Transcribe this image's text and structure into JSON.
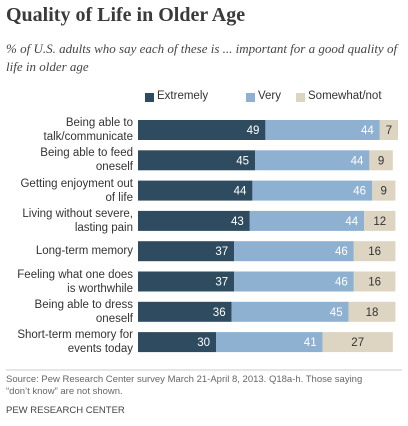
{
  "chart_data": {
    "type": "stacked-bar-horizontal",
    "title": "Quality of Life in Older Age",
    "subtitle": "% of U.S. adults who say each of these is ... important for a good quality of\nlife in older age",
    "categories": [
      "Being able to\ntalk/communicate",
      "Being able to feed\noneself",
      "Getting enjoyment out\nof life",
      "Living without severe,\nlasting pain",
      "Long-term memory",
      "Feeling what one does\nis worthwhile",
      "Being able to dress\noneself",
      "Short-term memory for\nevents today"
    ],
    "series": [
      {
        "name": "Extremely",
        "color": "#2f4b5f",
        "label_color": "#ffffff",
        "values": [
          49,
          45,
          44,
          43,
          37,
          37,
          36,
          30
        ]
      },
      {
        "name": "Very",
        "color": "#8eb1d2",
        "label_color": "#ffffff",
        "values": [
          44,
          44,
          46,
          44,
          46,
          46,
          45,
          41
        ]
      },
      {
        "name": "Somewhat/not",
        "color": "#ddd5c2",
        "label_color": "#333333",
        "values": [
          7,
          9,
          9,
          12,
          16,
          16,
          18,
          27
        ]
      }
    ],
    "source": "Source: Pew Research Center survey March 21-April 8, 2013. Q18a-h. Those saying\n“don’t know” are not shown.",
    "credit": "PEW RESEARCH CENTER"
  }
}
